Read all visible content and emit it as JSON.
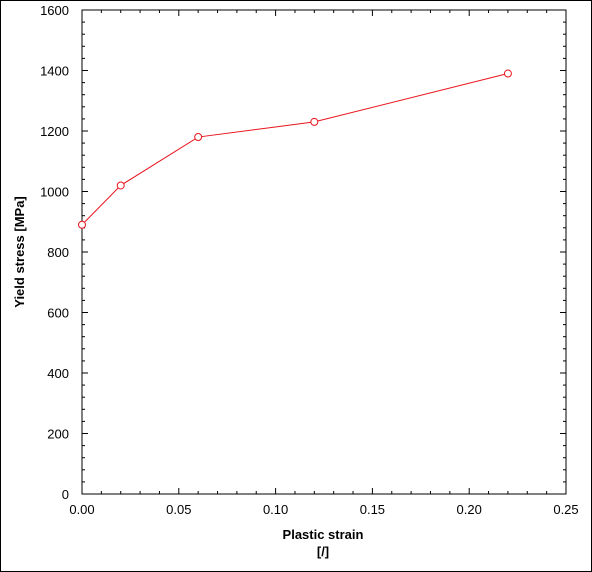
{
  "chart_data": {
    "type": "line",
    "xlabel": "Plastic strain",
    "xunit": "[/]",
    "ylabel": "Yield stress [MPa]",
    "xlim": [
      0,
      0.25
    ],
    "ylim": [
      0,
      1600
    ],
    "xticks": [
      0,
      0.05,
      0.1,
      0.15,
      0.2,
      0.25
    ],
    "xtick_labels": [
      "0.00",
      "0.05",
      "0.10",
      "0.15",
      "0.20",
      "0.25"
    ],
    "yticks": [
      0,
      200,
      400,
      600,
      800,
      1000,
      1200,
      1400,
      1600
    ],
    "ytick_labels": [
      "0",
      "200",
      "400",
      "600",
      "800",
      "1000",
      "1200",
      "1400",
      "1600"
    ],
    "grid": false,
    "series": [
      {
        "color": "#e8141c",
        "marker": "circle-open",
        "x": [
          0.0,
          0.02,
          0.06,
          0.12,
          0.22
        ],
        "y": [
          890,
          1020,
          1180,
          1230,
          1390
        ]
      }
    ]
  }
}
